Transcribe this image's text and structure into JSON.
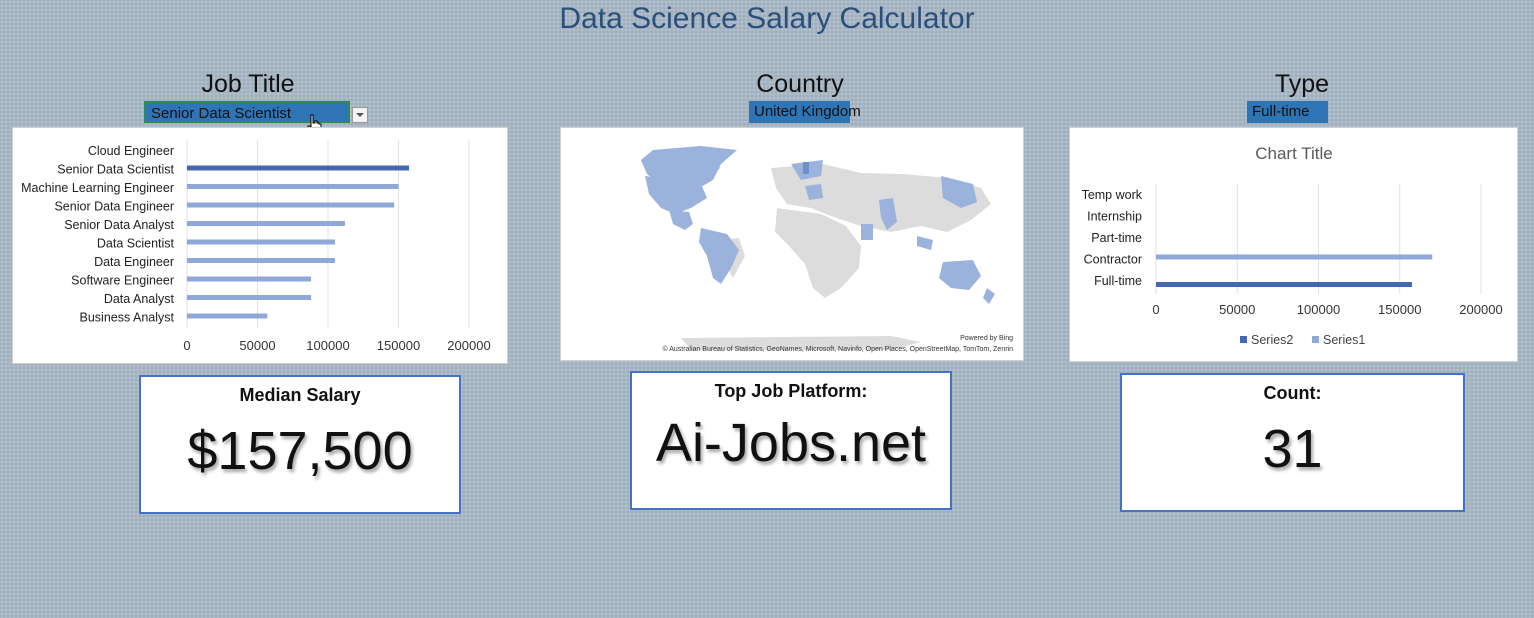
{
  "header": {
    "title": "Data Science Salary Calculator"
  },
  "filters": {
    "job_title_label": "Job Title",
    "job_title_value": "Senior Data Scientist",
    "country_label": "Country",
    "country_value": "United Kingdom",
    "type_label": "Type",
    "type_value": "Full-time"
  },
  "map": {
    "powered_by": "Powered by Bing",
    "attribution": "© Australian Bureau of Statistics, GeoNames, Microsoft, Navinfo, Open Places, OpenStreetMap, TomTom, Zenrin"
  },
  "kpis": {
    "median_label": "Median Salary",
    "median_value": "$157,500",
    "platform_label": "Top Job Platform:",
    "platform_value": "Ai-Jobs.net",
    "count_label": "Count:",
    "count_value": "31"
  },
  "colors": {
    "highlight": "#2e75b6",
    "bar_dark": "#4468b0",
    "bar_light": "#8fa8d8",
    "map_fill": "#9ab2dc",
    "map_dark": "#6f90c9"
  },
  "chart_data": [
    {
      "type": "bar",
      "orientation": "horizontal",
      "title": "",
      "categories": [
        "Cloud Engineer",
        "Senior Data Scientist",
        "Machine Learning Engineer",
        "Senior Data Engineer",
        "Senior Data Analyst",
        "Data Scientist",
        "Data Engineer",
        "Software Engineer",
        "Data Analyst",
        "Business Analyst"
      ],
      "values": [
        0,
        157500,
        150000,
        147000,
        112000,
        105000,
        105000,
        88000,
        88000,
        57000
      ],
      "highlighted_category": "Senior Data Scientist",
      "xlim": [
        0,
        200000
      ],
      "xticks": [
        0,
        50000,
        100000,
        150000,
        200000
      ],
      "grid": true
    },
    {
      "type": "bar",
      "orientation": "horizontal",
      "title": "Chart Title",
      "categories": [
        "Temp work",
        "Internship",
        "Part-time",
        "Contractor",
        "Full-time"
      ],
      "series": [
        {
          "name": "Series2",
          "color": "#4468b0",
          "values": [
            0,
            0,
            0,
            0,
            157500
          ]
        },
        {
          "name": "Series1",
          "color": "#8fa8d8",
          "values": [
            0,
            0,
            0,
            170000,
            0
          ]
        }
      ],
      "xlim": [
        0,
        200000
      ],
      "xticks": [
        0,
        50000,
        100000,
        150000,
        200000
      ],
      "legend": "bottom",
      "grid": true
    }
  ]
}
